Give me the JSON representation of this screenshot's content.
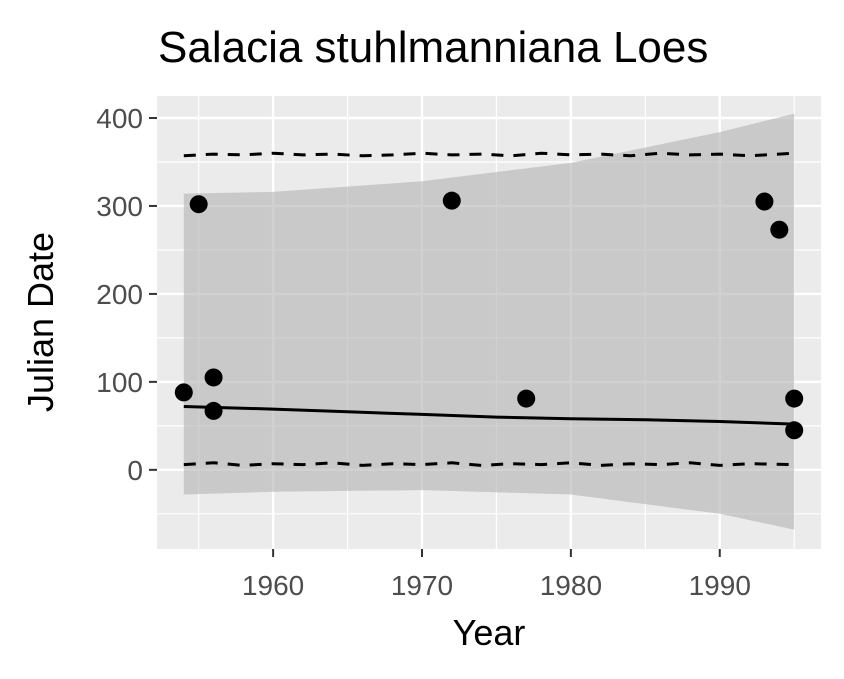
{
  "chart_data": {
    "type": "scatter",
    "title": "Salacia stuhlmanniana Loes",
    "xlabel": "Year",
    "ylabel": "Julian Date",
    "xlim": [
      1952.2,
      1996.8
    ],
    "ylim": [
      -90,
      425
    ],
    "x_ticks": [
      1960,
      1970,
      1980,
      1990
    ],
    "x_tick_labels": [
      "1960",
      "1970",
      "1980",
      "1990"
    ],
    "y_ticks": [
      0,
      100,
      200,
      300,
      400
    ],
    "y_tick_labels": [
      "0",
      "100",
      "200",
      "300",
      "400"
    ],
    "grid": true,
    "legend": "none",
    "points": {
      "x": [
        1954,
        1955,
        1956,
        1956,
        1972,
        1977,
        1993,
        1994,
        1995,
        1995
      ],
      "y": [
        88,
        302,
        105,
        67,
        306,
        81,
        305,
        273,
        81,
        45
      ]
    },
    "fit_line": {
      "x": [
        1954,
        1960,
        1965,
        1970,
        1975,
        1980,
        1985,
        1990,
        1995
      ],
      "y": [
        72,
        69,
        66,
        63,
        60,
        58,
        57,
        55,
        52
      ]
    },
    "confidence_band": {
      "x": [
        1954,
        1960,
        1970,
        1980,
        1990,
        1995
      ],
      "upper": [
        314,
        316,
        328,
        349,
        384,
        405
      ],
      "lower": [
        -28,
        -25,
        -23,
        -28,
        -50,
        -68
      ]
    },
    "dashed_upper": {
      "x": [
        1954,
        1956,
        1958,
        1960,
        1962,
        1964,
        1966,
        1968,
        1970,
        1972,
        1974,
        1976,
        1978,
        1980,
        1982,
        1984,
        1986,
        1988,
        1990,
        1992,
        1995
      ],
      "y": [
        357,
        359,
        358,
        360,
        358,
        359,
        357,
        358,
        360,
        358,
        359,
        357,
        360,
        358,
        359,
        357,
        360,
        358,
        359,
        357,
        360
      ]
    },
    "dashed_lower": {
      "x": [
        1954,
        1956,
        1958,
        1960,
        1962,
        1964,
        1966,
        1968,
        1970,
        1972,
        1974,
        1976,
        1978,
        1980,
        1982,
        1984,
        1986,
        1988,
        1990,
        1992,
        1995
      ],
      "y": [
        6,
        8,
        5,
        7,
        6,
        8,
        5,
        7,
        6,
        8,
        5,
        7,
        6,
        8,
        5,
        7,
        6,
        8,
        5,
        7,
        6
      ]
    },
    "colors": {
      "panel": "#ebebeb",
      "grid": "#ffffff",
      "band": "#b3b3b3",
      "points": "#000000",
      "lines": "#000000"
    }
  }
}
